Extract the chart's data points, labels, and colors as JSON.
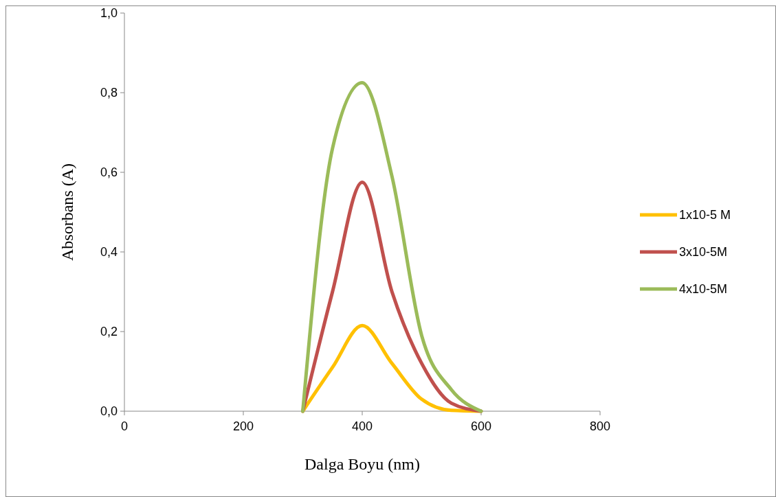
{
  "chart_data": {
    "type": "line",
    "xlabel": "Dalga Boyu (nm)",
    "ylabel": "Absorbans (A)",
    "x": [
      300,
      350,
      400,
      450,
      500,
      550,
      600
    ],
    "series": [
      {
        "name": "1x10-5 M",
        "color": "#ffc000",
        "values": [
          0,
          0.11,
          0.215,
          0.12,
          0.03,
          0.002,
          0
        ]
      },
      {
        "name": "3x10-5M",
        "color": "#c0504d",
        "values": [
          0,
          0.3,
          0.575,
          0.3,
          0.12,
          0.02,
          0
        ]
      },
      {
        "name": "4x10-5M",
        "color": "#9bbb59",
        "values": [
          0,
          0.66,
          0.825,
          0.59,
          0.19,
          0.054,
          0
        ]
      }
    ],
    "xlim": [
      0,
      800
    ],
    "xticks": [
      0,
      200,
      400,
      600,
      800
    ],
    "ylim": [
      0,
      1
    ],
    "yticks": [
      {
        "value": 0,
        "label": "0,0"
      },
      {
        "value": 0.2,
        "label": "0,2"
      },
      {
        "value": 0.4,
        "label": "0,4"
      },
      {
        "value": 0.6,
        "label": "0,6"
      },
      {
        "value": 0.8,
        "label": "0,8"
      },
      {
        "value": 1,
        "label": "1,0"
      }
    ],
    "legend": "right",
    "grid": false,
    "marker": "none",
    "line_style": "solid"
  }
}
